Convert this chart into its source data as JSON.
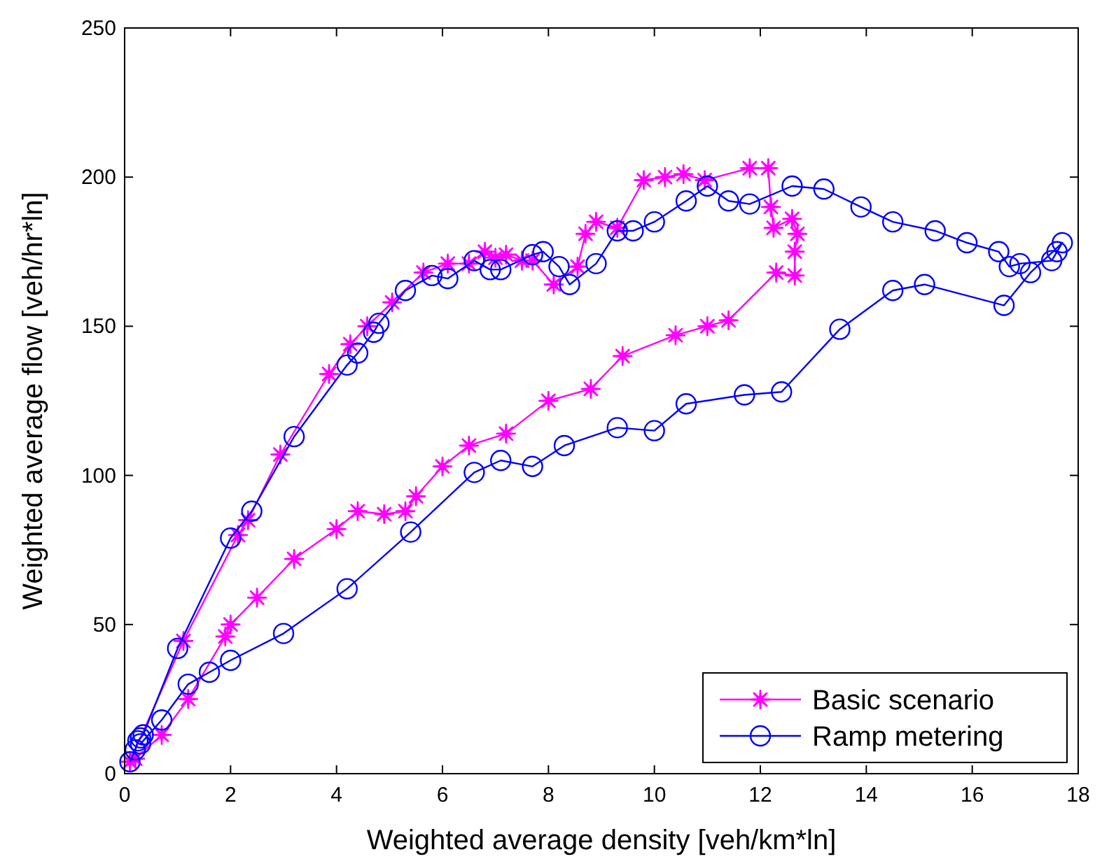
{
  "chart_data": {
    "type": "line",
    "xlabel": "Weighted average density [veh/km*ln]",
    "ylabel": "Weighted average flow [veh/hr*ln]",
    "xlim": [
      0,
      18
    ],
    "ylim": [
      0,
      250
    ],
    "xticks": [
      0,
      2,
      4,
      6,
      8,
      10,
      12,
      14,
      16,
      18
    ],
    "yticks": [
      0,
      50,
      100,
      150,
      200,
      250
    ],
    "grid": false,
    "legend": "bottom right",
    "line_style": "solid",
    "series": [
      {
        "name": "Basic scenario",
        "color": "#ff00ff",
        "marker": "star",
        "x": [
          0.1,
          1.11,
          2.14,
          2.33,
          2.94,
          3.86,
          4.26,
          4.58,
          5.05,
          5.64,
          6.1,
          6.5,
          6.8,
          7.0,
          7.2,
          7.5,
          7.7,
          8.1,
          8.55,
          8.7,
          8.9,
          9.3,
          9.8,
          10.2,
          10.55,
          10.95,
          11.8,
          12.15,
          12.2,
          12.25,
          12.6,
          12.7,
          12.65,
          12.65,
          12.3,
          11.4,
          11.0,
          10.4,
          9.4,
          8.8,
          8.0,
          7.2,
          6.5,
          6.0,
          5.5,
          5.3,
          4.9,
          4.4,
          4.0,
          3.2,
          2.5,
          2.0,
          1.9,
          1.2,
          0.7,
          0.2
        ],
        "values": [
          4,
          44.5,
          80,
          85,
          107,
          134,
          144,
          150,
          158,
          168,
          171,
          171,
          175,
          173,
          174,
          172,
          172,
          164,
          170,
          181,
          185,
          183,
          199,
          200,
          201,
          199,
          203,
          203,
          190,
          183,
          186,
          181,
          175,
          167,
          168,
          152,
          150,
          147,
          140,
          129,
          125,
          114,
          110,
          103,
          93,
          88,
          87,
          88,
          82,
          72,
          59,
          50,
          46,
          25,
          13,
          5
        ]
      },
      {
        "name": "Ramp metering",
        "color": "#0000ff",
        "marker": "circle",
        "x": [
          0.1,
          0.2,
          0.25,
          0.3,
          0.35,
          1.0,
          2.0,
          2.4,
          3.2,
          4.2,
          4.4,
          4.7,
          4.8,
          5.3,
          5.8,
          6.1,
          6.6,
          6.9,
          7.1,
          7.7,
          7.9,
          8.2,
          8.4,
          8.9,
          9.3,
          9.6,
          10.0,
          10.6,
          11.0,
          11.4,
          11.8,
          12.6,
          13.2,
          13.9,
          14.5,
          15.3,
          15.9,
          16.5,
          16.7,
          16.9,
          17.5,
          17.6,
          17.7,
          17.1,
          16.6,
          15.1,
          14.5,
          13.5,
          12.4,
          11.7,
          10.6,
          10.0,
          9.3,
          8.3,
          7.7,
          7.1,
          6.6,
          5.4,
          4.2,
          3.0,
          2.0,
          1.6,
          1.2,
          0.7,
          0.3
        ],
        "values": [
          4,
          8,
          11,
          12,
          13,
          42,
          79,
          88,
          113,
          137,
          141,
          148,
          151,
          162,
          167,
          166,
          172,
          169,
          169,
          174,
          175,
          170,
          164,
          171,
          182,
          182,
          185,
          192,
          197,
          192,
          191,
          197,
          196,
          190,
          185,
          182,
          178,
          175,
          170,
          171,
          172,
          175,
          178,
          168,
          157,
          164,
          162,
          149,
          128,
          127,
          124,
          115,
          116,
          110,
          103,
          105,
          101,
          81,
          62,
          47,
          38,
          34,
          30,
          18,
          10
        ]
      }
    ]
  }
}
